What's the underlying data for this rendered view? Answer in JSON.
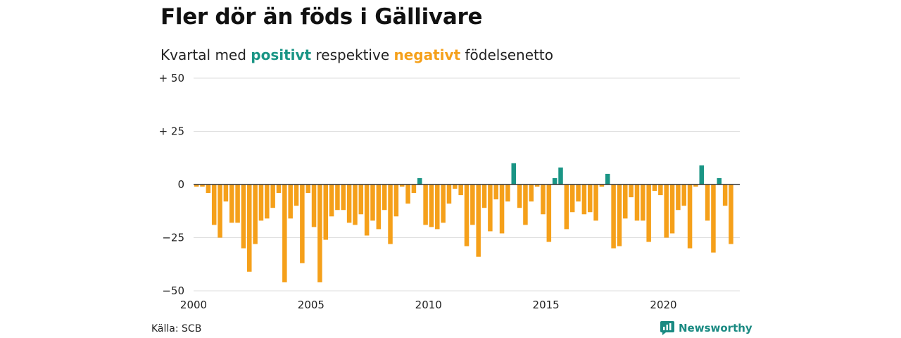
{
  "header": {
    "title": "Fler dör än föds i Gällivare",
    "subtitle_pre": "Kvartal med",
    "subtitle_pos": "positivt",
    "subtitle_mid": "respektive",
    "subtitle_neg": "negativt",
    "subtitle_post": "födelsenetto"
  },
  "footer": {
    "source": "Källa: SCB",
    "brand": "Newsworthy",
    "brand_icon": "newsworthy-logo-icon"
  },
  "colors": {
    "positive": "#1a9585",
    "negative": "#f5a01a",
    "grid": "#dddddd",
    "zero": "#333333"
  },
  "chart_data": {
    "type": "bar",
    "title": "Fler dör än föds i Gällivare",
    "subtitle": "Kvartal med positivt respektive negativt födelsenetto",
    "xlabel": "",
    "ylabel": "",
    "ylim": [
      -50,
      50
    ],
    "y_ticks": [
      50,
      25,
      0,
      -25,
      -50
    ],
    "y_tick_labels": [
      "+ 50",
      "+ 25",
      "0",
      "−25",
      "−50"
    ],
    "x_ticks": [
      2000,
      2005,
      2010,
      2015,
      2020
    ],
    "x_tick_labels": [
      "2000",
      "2005",
      "2010",
      "2015",
      "2020"
    ],
    "x_range": [
      2000,
      2023.25
    ],
    "start_year": 2000,
    "periods_per_year": 4,
    "grid": true,
    "legend": "none",
    "values": [
      -1,
      -1,
      -4,
      -19,
      -25,
      -8,
      -18,
      -18,
      -30,
      -41,
      -28,
      -17,
      -16,
      -11,
      -4,
      -46,
      -16,
      -10,
      -37,
      -4,
      -20,
      -46,
      -26,
      -15,
      -12,
      -12,
      -18,
      -19,
      -14,
      -24,
      -17,
      -21,
      -12,
      -28,
      -15,
      -1,
      -9,
      -4,
      3,
      -19,
      -20,
      -21,
      -18,
      -9,
      -2,
      -5,
      -29,
      -19,
      -34,
      -11,
      -22,
      -7,
      -23,
      -8,
      10,
      -11,
      -19,
      -8,
      -1,
      -14,
      -27,
      3,
      8,
      -21,
      -13,
      -8,
      -14,
      -13,
      -17,
      -1,
      5,
      -30,
      -29,
      -16,
      -6,
      -17,
      -17,
      -27,
      -3,
      -5,
      -25,
      -23,
      -12,
      -10,
      -30,
      -1,
      9,
      -17,
      -32,
      3,
      -10,
      -28
    ]
  }
}
